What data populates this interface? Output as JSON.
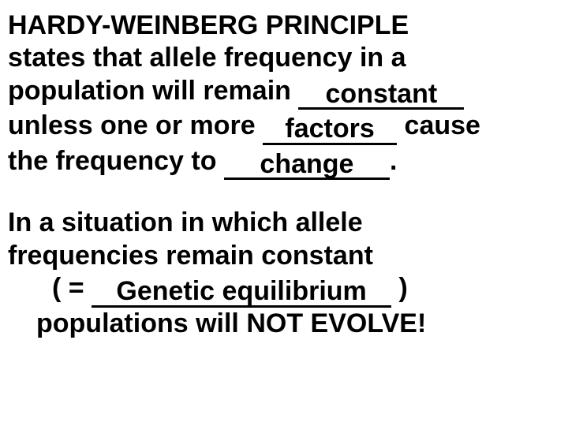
{
  "para1": {
    "l1a": "HARDY-WEINBERG PRINCIPLE",
    "l2a": "states that allele frequency in a",
    "l3a": "population will remain ",
    "blank1": "constant",
    "l4a": "unless one or more ",
    "blank2": "factors",
    "l4b": " cause",
    "l5a": "the frequency to ",
    "blank3": "change",
    "l5b": "."
  },
  "para2": {
    "l1": "In a situation in which allele",
    "l2": "frequencies remain constant",
    "l3a": "( = ",
    "blank4": "Genetic equilibrium",
    "l3b": " )",
    "l4": "populations will NOT EVOLVE!"
  },
  "style": {
    "font_family": "Arial",
    "font_size_pt": 26,
    "font_weight": "bold",
    "text_color": "#000000",
    "background_color": "#ffffff",
    "underline_color": "#000000"
  }
}
